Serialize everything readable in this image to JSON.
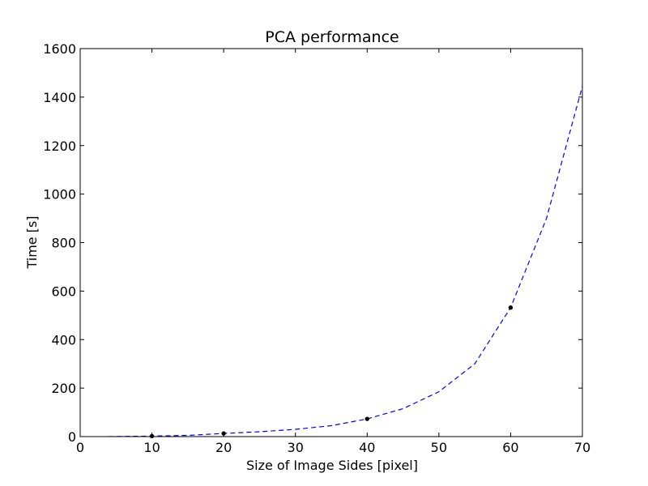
{
  "chart_data": {
    "type": "line",
    "title": "PCA performance",
    "xlabel": "Size of Image Sides [pixel]",
    "ylabel": "Time [s]",
    "xlim": [
      0,
      70
    ],
    "ylim": [
      0,
      1600
    ],
    "xticks": [
      0,
      10,
      20,
      30,
      40,
      50,
      60,
      70
    ],
    "yticks": [
      0,
      200,
      400,
      600,
      800,
      1000,
      1200,
      1400,
      1600
    ],
    "grid": false,
    "series": [
      {
        "kind": "scatter",
        "color": "#000000",
        "points": [
          {
            "x": 10,
            "y": 2
          },
          {
            "x": 20,
            "y": 13
          },
          {
            "x": 40,
            "y": 73
          },
          {
            "x": 60,
            "y": 532
          }
        ]
      },
      {
        "kind": "dashed-line",
        "color": "#0000ff",
        "points": [
          {
            "x": 4,
            "y": 0
          },
          {
            "x": 10,
            "y": 2
          },
          {
            "x": 15,
            "y": 5
          },
          {
            "x": 20,
            "y": 13
          },
          {
            "x": 25,
            "y": 20
          },
          {
            "x": 30,
            "y": 30
          },
          {
            "x": 35,
            "y": 45
          },
          {
            "x": 40,
            "y": 73
          },
          {
            "x": 45,
            "y": 115
          },
          {
            "x": 50,
            "y": 185
          },
          {
            "x": 55,
            "y": 300
          },
          {
            "x": 60,
            "y": 532
          },
          {
            "x": 65,
            "y": 900
          },
          {
            "x": 70,
            "y": 1445
          }
        ]
      }
    ]
  }
}
